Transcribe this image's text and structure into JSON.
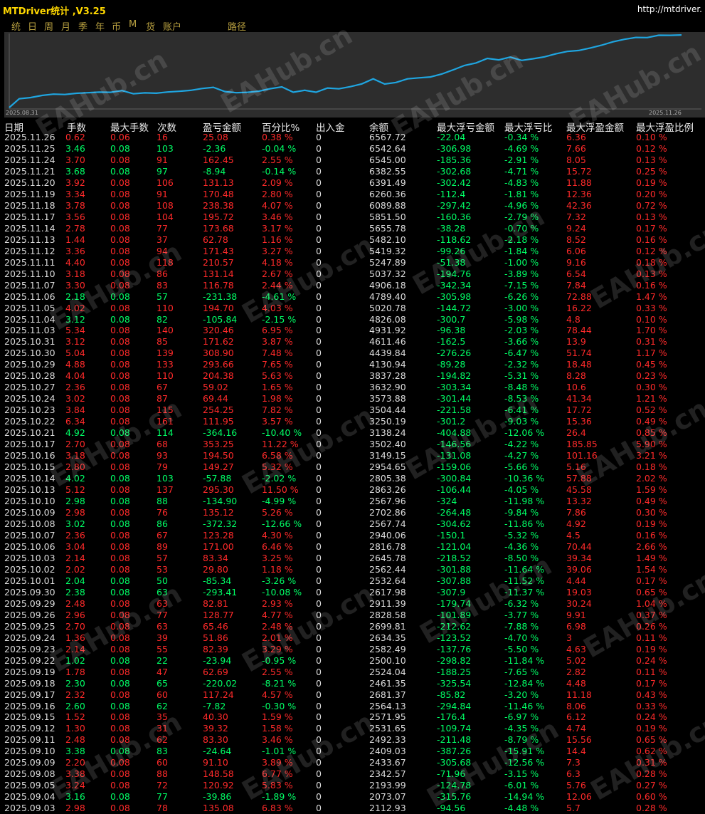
{
  "app": {
    "title": "MTDriver统计 ,V3.25",
    "url": "http://mtdriver."
  },
  "menu": [
    "统",
    "日",
    "周",
    "月",
    "季",
    "年",
    "币",
    "M",
    "货",
    "账户",
    "路径"
  ],
  "chart": {
    "start_label": "2025.08.31",
    "end_label": "2025.11.26",
    "line_color": "#1fa5e0",
    "values": [
      2112.93,
      2193.99,
      2342.57,
      2433.67,
      2409.03,
      2492.33,
      2531.65,
      2571.95,
      2564.13,
      2681.37,
      2461.35,
      2524.04,
      2500.1,
      2582.49,
      2634.35,
      2699.81,
      2828.58,
      2911.39,
      2617.98,
      2532.64,
      2562.44,
      2645.78,
      2816.78,
      2940.06,
      2567.74,
      2702.86,
      2567.96,
      2863.26,
      2805.38,
      2954.65,
      3149.15,
      3502.4,
      3138.24,
      3250.19,
      3504.44,
      3573.88,
      3632.9,
      3837.28,
      4130.94,
      4439.84,
      4611.46,
      4931.92,
      4826.08,
      5020.78,
      4789.4,
      4906.18,
      5037.32,
      5247.89,
      5419.32,
      5482.1,
      5655.78,
      5851.5,
      6089.88,
      6260.36,
      6391.49,
      6382.55,
      6545.0,
      6542.64,
      6567.72
    ]
  },
  "watermark_text": "EAHub.cn",
  "table": {
    "headers": [
      "日期",
      "手数",
      "最大手数",
      "次数",
      "盈亏金额",
      "百分比%",
      "出入金",
      "余额",
      "最大浮亏金额",
      "最大浮亏比",
      "最大浮盈金额",
      "最大浮盈比例"
    ],
    "rows": [
      [
        "2025.11.26",
        "0.62",
        "0.06",
        "16",
        "25.08",
        "0.38 %",
        "0",
        "6567.72",
        "-22.04",
        "-0.34 %",
        "6.36",
        "0.10 %"
      ],
      [
        "2025.11.25",
        "3.46",
        "0.08",
        "103",
        "-2.36",
        "-0.04 %",
        "0",
        "6542.64",
        "-306.98",
        "-4.69 %",
        "7.66",
        "0.12 %"
      ],
      [
        "2025.11.24",
        "3.70",
        "0.08",
        "91",
        "162.45",
        "2.55 %",
        "0",
        "6545.00",
        "-185.36",
        "-2.91 %",
        "8.05",
        "0.13 %"
      ],
      [
        "2025.11.21",
        "3.68",
        "0.08",
        "97",
        "-8.94",
        "-0.14 %",
        "0",
        "6382.55",
        "-302.68",
        "-4.71 %",
        "15.72",
        "0.25 %"
      ],
      [
        "2025.11.20",
        "3.92",
        "0.08",
        "106",
        "131.13",
        "2.09 %",
        "0",
        "6391.49",
        "-302.42",
        "-4.83 %",
        "11.88",
        "0.19 %"
      ],
      [
        "2025.11.19",
        "3.34",
        "0.08",
        "91",
        "170.48",
        "2.80 %",
        "0",
        "6260.36",
        "-112.4",
        "-1.81 %",
        "12.36",
        "0.20 %"
      ],
      [
        "2025.11.18",
        "3.78",
        "0.08",
        "108",
        "238.38",
        "4.07 %",
        "0",
        "6089.88",
        "-297.42",
        "-4.96 %",
        "42.36",
        "0.72 %"
      ],
      [
        "2025.11.17",
        "3.56",
        "0.08",
        "104",
        "195.72",
        "3.46 %",
        "0",
        "5851.50",
        "-160.36",
        "-2.79 %",
        "7.32",
        "0.13 %"
      ],
      [
        "2025.11.14",
        "2.78",
        "0.08",
        "77",
        "173.68",
        "3.17 %",
        "0",
        "5655.78",
        "-38.28",
        "-0.70 %",
        "9.24",
        "0.17 %"
      ],
      [
        "2025.11.13",
        "1.44",
        "0.08",
        "37",
        "62.78",
        "1.16 %",
        "0",
        "5482.10",
        "-118.62",
        "-2.18 %",
        "8.52",
        "0.16 %"
      ],
      [
        "2025.11.12",
        "3.36",
        "0.08",
        "94",
        "171.43",
        "3.27 %",
        "0",
        "5419.32",
        "-99.26",
        "-1.84 %",
        "6.06",
        "0.12 %"
      ],
      [
        "2025.11.11",
        "4.40",
        "0.08",
        "118",
        "210.57",
        "4.18 %",
        "0",
        "5247.89",
        "-51.38",
        "-1.00 %",
        "9.16",
        "0.18 %"
      ],
      [
        "2025.11.10",
        "3.18",
        "0.08",
        "86",
        "131.14",
        "2.67 %",
        "0",
        "5037.32",
        "-194.76",
        "-3.89 %",
        "6.54",
        "0.13 %"
      ],
      [
        "2025.11.07",
        "3.30",
        "0.08",
        "83",
        "116.78",
        "2.44 %",
        "0",
        "4906.18",
        "-342.34",
        "-7.15 %",
        "7.84",
        "0.16 %"
      ],
      [
        "2025.11.06",
        "2.18",
        "0.08",
        "57",
        "-231.38",
        "-4.61 %",
        "0",
        "4789.40",
        "-305.98",
        "-6.26 %",
        "72.88",
        "1.47 %"
      ],
      [
        "2025.11.05",
        "4.02",
        "0.08",
        "110",
        "194.70",
        "4.03 %",
        "0",
        "5020.78",
        "-144.72",
        "-3.00 %",
        "16.22",
        "0.33 %"
      ],
      [
        "2025.11.04",
        "3.12",
        "0.08",
        "82",
        "-105.84",
        "-2.15 %",
        "0",
        "4826.08",
        "-300.7",
        "-5.98 %",
        "4.8",
        "0.10 %"
      ],
      [
        "2025.11.03",
        "5.34",
        "0.08",
        "140",
        "320.46",
        "6.95 %",
        "0",
        "4931.92",
        "-96.38",
        "-2.03 %",
        "78.44",
        "1.70 %"
      ],
      [
        "2025.10.31",
        "3.12",
        "0.08",
        "85",
        "171.62",
        "3.87 %",
        "0",
        "4611.46",
        "-162.5",
        "-3.66 %",
        "13.9",
        "0.31 %"
      ],
      [
        "2025.10.30",
        "5.04",
        "0.08",
        "139",
        "308.90",
        "7.48 %",
        "0",
        "4439.84",
        "-276.26",
        "-6.47 %",
        "51.74",
        "1.17 %"
      ],
      [
        "2025.10.29",
        "4.88",
        "0.08",
        "133",
        "293.66",
        "7.65 %",
        "0",
        "4130.94",
        "-89.28",
        "-2.32 %",
        "18.48",
        "0.45 %"
      ],
      [
        "2025.10.28",
        "4.04",
        "0.08",
        "110",
        "204.38",
        "5.63 %",
        "0",
        "3837.28",
        "-194.82",
        "-5.31 %",
        "8.28",
        "0.23 %"
      ],
      [
        "2025.10.27",
        "2.36",
        "0.08",
        "67",
        "59.02",
        "1.65 %",
        "0",
        "3632.90",
        "-303.34",
        "-8.48 %",
        "10.6",
        "0.30 %"
      ],
      [
        "2025.10.24",
        "3.02",
        "0.08",
        "87",
        "69.44",
        "1.98 %",
        "0",
        "3573.88",
        "-301.44",
        "-8.53 %",
        "41.34",
        "1.21 %"
      ],
      [
        "2025.10.23",
        "3.84",
        "0.08",
        "115",
        "254.25",
        "7.82 %",
        "0",
        "3504.44",
        "-221.58",
        "-6.41 %",
        "17.72",
        "0.52 %"
      ],
      [
        "2025.10.22",
        "6.34",
        "0.08",
        "161",
        "111.95",
        "3.57 %",
        "0",
        "3250.19",
        "-301.2",
        "-9.03 %",
        "15.36",
        "0.49 %"
      ],
      [
        "2025.10.21",
        "4.92",
        "0.08",
        "114",
        "-364.16",
        "-10.40 %",
        "0",
        "3138.24",
        "-404.88",
        "-12.06 %",
        "26.4",
        "0.85 %"
      ],
      [
        "2025.10.17",
        "2.70",
        "0.08",
        "68",
        "353.25",
        "11.22 %",
        "0",
        "3502.40",
        "-146.56",
        "-4.22 %",
        "185.85",
        "5.90 %"
      ],
      [
        "2025.10.16",
        "3.18",
        "0.08",
        "93",
        "194.50",
        "6.58 %",
        "0",
        "3149.15",
        "-131.08",
        "-4.27 %",
        "101.16",
        "3.21 %"
      ],
      [
        "2025.10.15",
        "2.80",
        "0.08",
        "79",
        "149.27",
        "5.32 %",
        "0",
        "2954.65",
        "-159.06",
        "-5.66 %",
        "5.16",
        "0.18 %"
      ],
      [
        "2025.10.14",
        "4.02",
        "0.08",
        "103",
        "-57.88",
        "-2.02 %",
        "0",
        "2805.38",
        "-300.84",
        "-10.36 %",
        "57.88",
        "2.02 %"
      ],
      [
        "2025.10.13",
        "5.12",
        "0.08",
        "137",
        "295.30",
        "11.50 %",
        "0",
        "2863.26",
        "-106.44",
        "-4.05 %",
        "45.58",
        "1.59 %"
      ],
      [
        "2025.10.10",
        "2.98",
        "0.08",
        "88",
        "-134.90",
        "-4.99 %",
        "0",
        "2567.96",
        "-324",
        "-11.98 %",
        "13.32",
        "0.49 %"
      ],
      [
        "2025.10.09",
        "2.98",
        "0.08",
        "76",
        "135.12",
        "5.26 %",
        "0",
        "2702.86",
        "-264.48",
        "-9.84 %",
        "7.86",
        "0.30 %"
      ],
      [
        "2025.10.08",
        "3.02",
        "0.08",
        "86",
        "-372.32",
        "-12.66 %",
        "0",
        "2567.74",
        "-304.62",
        "-11.86 %",
        "4.92",
        "0.19 %"
      ],
      [
        "2025.10.07",
        "2.36",
        "0.08",
        "67",
        "123.28",
        "4.30 %",
        "0",
        "2940.06",
        "-150.1",
        "-5.32 %",
        "4.5",
        "0.16 %"
      ],
      [
        "2025.10.06",
        "3.04",
        "0.08",
        "89",
        "171.00",
        "6.46 %",
        "0",
        "2816.78",
        "-121.04",
        "-4.36 %",
        "70.44",
        "2.66 %"
      ],
      [
        "2025.10.03",
        "2.14",
        "0.08",
        "57",
        "83.34",
        "3.25 %",
        "0",
        "2645.78",
        "-218.52",
        "-8.50 %",
        "39.34",
        "1.49 %"
      ],
      [
        "2025.10.02",
        "2.02",
        "0.08",
        "53",
        "29.80",
        "1.18 %",
        "0",
        "2562.44",
        "-301.88",
        "-11.64 %",
        "39.06",
        "1.54 %"
      ],
      [
        "2025.10.01",
        "2.04",
        "0.08",
        "50",
        "-85.34",
        "-3.26 %",
        "0",
        "2532.64",
        "-307.88",
        "-11.52 %",
        "4.44",
        "0.17 %"
      ],
      [
        "2025.09.30",
        "2.38",
        "0.08",
        "63",
        "-293.41",
        "-10.08 %",
        "0",
        "2617.98",
        "-307.9",
        "-11.37 %",
        "19.03",
        "0.65 %"
      ],
      [
        "2025.09.29",
        "2.48",
        "0.08",
        "63",
        "82.81",
        "2.93 %",
        "0",
        "2911.39",
        "-179.74",
        "-6.32 %",
        "30.24",
        "1.04 %"
      ],
      [
        "2025.09.26",
        "2.96",
        "0.08",
        "77",
        "128.77",
        "4.77 %",
        "0",
        "2828.58",
        "-101.89",
        "-3.77 %",
        "9.91",
        "0.37 %"
      ],
      [
        "2025.09.25",
        "2.70",
        "0.08",
        "63",
        "65.46",
        "2.48 %",
        "0",
        "2699.81",
        "-212.62",
        "-7.88 %",
        "6.98",
        "0.26 %"
      ],
      [
        "2025.09.24",
        "1.36",
        "0.08",
        "39",
        "51.86",
        "2.01 %",
        "0",
        "2634.35",
        "-123.52",
        "-4.70 %",
        "3",
        "0.11 %"
      ],
      [
        "2025.09.23",
        "2.14",
        "0.08",
        "55",
        "82.39",
        "3.29 %",
        "0",
        "2582.49",
        "-137.76",
        "-5.50 %",
        "4.63",
        "0.19 %"
      ],
      [
        "2025.09.22",
        "1.02",
        "0.08",
        "22",
        "-23.94",
        "-0.95 %",
        "0",
        "2500.10",
        "-298.82",
        "-11.84 %",
        "5.02",
        "0.24 %"
      ],
      [
        "2025.09.19",
        "1.78",
        "0.08",
        "47",
        "62.69",
        "2.55 %",
        "0",
        "2524.04",
        "-188.25",
        "-7.65 %",
        "2.82",
        "0.11 %"
      ],
      [
        "2025.09.18",
        "2.30",
        "0.08",
        "65",
        "-220.02",
        "-8.21 %",
        "0",
        "2461.35",
        "-325.54",
        "-12.84 %",
        "4.48",
        "0.17 %"
      ],
      [
        "2025.09.17",
        "2.32",
        "0.08",
        "60",
        "117.24",
        "4.57 %",
        "0",
        "2681.37",
        "-85.82",
        "-3.20 %",
        "11.18",
        "0.43 %"
      ],
      [
        "2025.09.16",
        "2.60",
        "0.08",
        "62",
        "-7.82",
        "-0.30 %",
        "0",
        "2564.13",
        "-294.84",
        "-11.46 %",
        "8.06",
        "0.33 %"
      ],
      [
        "2025.09.15",
        "1.52",
        "0.08",
        "35",
        "40.30",
        "1.59 %",
        "0",
        "2571.95",
        "-176.4",
        "-6.97 %",
        "6.12",
        "0.24 %"
      ],
      [
        "2025.09.12",
        "1.30",
        "0.08",
        "31",
        "39.32",
        "1.58 %",
        "0",
        "2531.65",
        "-109.74",
        "-4.35 %",
        "4.74",
        "0.19 %"
      ],
      [
        "2025.09.11",
        "2.48",
        "0.08",
        "62",
        "83.30",
        "3.46 %",
        "0",
        "2492.33",
        "-211.48",
        "-8.79 %",
        "15.56",
        "0.65 %"
      ],
      [
        "2025.09.10",
        "3.38",
        "0.08",
        "83",
        "-24.64",
        "-1.01 %",
        "0",
        "2409.03",
        "-387.26",
        "-15.91 %",
        "14.4",
        "0.62 %"
      ],
      [
        "2025.09.09",
        "2.20",
        "0.08",
        "60",
        "91.10",
        "3.89 %",
        "0",
        "2433.67",
        "-305.68",
        "-12.56 %",
        "7.3",
        "0.31 %"
      ],
      [
        "2025.09.08",
        "3.38",
        "0.08",
        "88",
        "148.58",
        "6.77 %",
        "0",
        "2342.57",
        "-71.96",
        "-3.15 %",
        "6.3",
        "0.28 %"
      ],
      [
        "2025.09.05",
        "3.24",
        "0.08",
        "72",
        "120.92",
        "5.83 %",
        "0",
        "2193.99",
        "-124.78",
        "-6.01 %",
        "5.76",
        "0.27 %"
      ],
      [
        "2025.09.04",
        "3.16",
        "0.08",
        "77",
        "-39.86",
        "-1.89 %",
        "0",
        "2073.07",
        "-315.76",
        "-14.94 %",
        "12.06",
        "0.60 %"
      ],
      [
        "2025.09.03",
        "2.98",
        "0.08",
        "78",
        "135.08",
        "6.83 %",
        "0",
        "2112.93",
        "-94.56",
        "-4.48 %",
        "5.7",
        "0.28 %"
      ]
    ]
  }
}
